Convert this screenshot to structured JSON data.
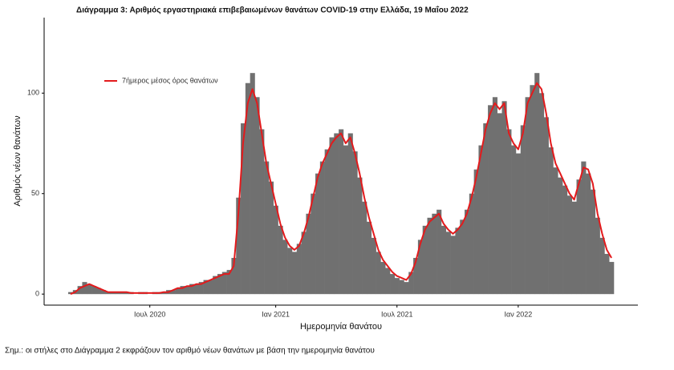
{
  "chart_data": {
    "type": "bar",
    "title": "Διάγραμμα 3: Αριθμός εργαστηριακά επιβεβαιωμένων θανάτων COVID-19 στην Ελλάδα, 19 Μαΐου 2022",
    "y_label": "Αριθμός νέων θανάτων",
    "x_label": "Ημερομηνία θανάτου",
    "note": "Σημ.: οι στήλες στο Διάγραμμα 2 εκφράζουν τον αριθμό νέων θανάτων με βάση την ημερομηνία θανάτου",
    "categories": [
      null,
      null,
      null,
      null,
      null,
      null,
      null,
      null,
      null,
      null,
      null,
      null,
      null,
      null,
      null,
      null,
      null,
      "Ιουλ 2020",
      null,
      null,
      null,
      null,
      null,
      null,
      null,
      null,
      null,
      null,
      null,
      null,
      null,
      null,
      null,
      null,
      null,
      null,
      null,
      null,
      null,
      null,
      null,
      null,
      null,
      null,
      "Ιαν 2021",
      null,
      null,
      null,
      null,
      null,
      null,
      null,
      null,
      null,
      null,
      null,
      null,
      null,
      null,
      null,
      null,
      null,
      null,
      null,
      null,
      null,
      null,
      null,
      null,
      null,
      "Ιουλ 2021",
      null,
      null,
      null,
      null,
      null,
      null,
      null,
      null,
      null,
      null,
      null,
      null,
      null,
      null,
      null,
      null,
      null,
      null,
      null,
      null,
      null,
      null,
      null,
      null,
      null,
      "Ιαν 2022",
      null,
      null,
      null,
      null,
      null,
      null,
      null,
      null,
      null,
      null,
      null,
      null,
      null,
      null,
      null,
      null,
      null,
      null,
      null,
      null
    ],
    "values": [
      1,
      2,
      4,
      6,
      5,
      4,
      3,
      2,
      1,
      1,
      1,
      1,
      1,
      1,
      0,
      1,
      1,
      0,
      1,
      1,
      1,
      2,
      2,
      3,
      4,
      4,
      5,
      5,
      6,
      7,
      7,
      9,
      10,
      11,
      12,
      18,
      48,
      85,
      105,
      110,
      98,
      82,
      66,
      56,
      44,
      34,
      27,
      23,
      21,
      25,
      31,
      40,
      50,
      60,
      66,
      72,
      78,
      80,
      82,
      74,
      80,
      71,
      58,
      46,
      36,
      28,
      21,
      16,
      13,
      10,
      8,
      7,
      6,
      11,
      18,
      27,
      34,
      38,
      40,
      42,
      34,
      31,
      29,
      33,
      37,
      42,
      50,
      62,
      74,
      85,
      94,
      98,
      90,
      96,
      82,
      74,
      70,
      84,
      98,
      104,
      110,
      100,
      88,
      73,
      63,
      58,
      54,
      49,
      46,
      57,
      66,
      60,
      52,
      38,
      28,
      20,
      16
    ],
    "color": "#707070",
    "series": [
      {
        "name": "7ήμερος μέσος όρος θανάτων",
        "color": "#e31a1c",
        "values": [
          0,
          1,
          3,
          4,
          5,
          4,
          3,
          2,
          1,
          1,
          1,
          1,
          1,
          0.5,
          0.5,
          0.5,
          0.5,
          0.5,
          0.5,
          0.5,
          1,
          1,
          2,
          3,
          3,
          4,
          4,
          5,
          5,
          6,
          7,
          8,
          9,
          10,
          10,
          14,
          40,
          75,
          95,
          102,
          95,
          80,
          65,
          55,
          45,
          35,
          28,
          24,
          22,
          24,
          30,
          38,
          48,
          58,
          65,
          70,
          75,
          78,
          80,
          75,
          78,
          70,
          60,
          48,
          38,
          30,
          22,
          17,
          14,
          11,
          9,
          8,
          7,
          10,
          16,
          25,
          32,
          36,
          38,
          40,
          35,
          32,
          30,
          32,
          35,
          40,
          48,
          58,
          70,
          82,
          90,
          95,
          92,
          95,
          80,
          75,
          72,
          80,
          95,
          100,
          105,
          102,
          90,
          75,
          65,
          60,
          55,
          50,
          47,
          55,
          63,
          62,
          55,
          40,
          30,
          22,
          18
        ]
      }
    ],
    "ylim": [
      -5.5,
      130
    ],
    "yticks": [
      0,
      50,
      100
    ],
    "grid": false
  }
}
